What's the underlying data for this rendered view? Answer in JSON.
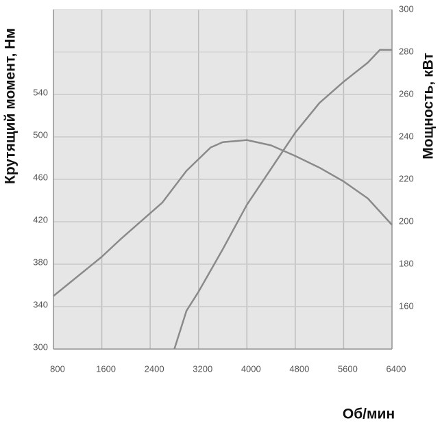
{
  "chart_data": {
    "type": "line",
    "ylabel": "Крутящий момент, Нм",
    "y2label": "Мощность, кВт",
    "xlabel": "Об/мин",
    "xlim": [
      800,
      6400
    ],
    "xticks": [
      800,
      1600,
      2400,
      3200,
      4000,
      4800,
      5600,
      6400
    ],
    "ylim": [
      300,
      620
    ],
    "yticks": [
      300,
      340,
      380,
      420,
      460,
      500,
      540
    ],
    "y2lim": [
      140,
      300
    ],
    "y2ticks": [
      160,
      180,
      200,
      220,
      240,
      260,
      280,
      300
    ],
    "grid": true,
    "series": [
      {
        "color": "#8a8a8a",
        "x": [
          800,
          1600,
          1900,
          2600,
          3000,
          3400,
          3600,
          4000,
          4400,
          4800,
          5200,
          5600,
          6000,
          6400
        ],
        "values": [
          350,
          387,
          403,
          438,
          468,
          490,
          495,
          497,
          492,
          482,
          471,
          458,
          442,
          417
        ]
      },
      {
        "color": "#8a8a8a",
        "axis": "y2",
        "x": [
          2800,
          3000,
          3200,
          3600,
          4000,
          4400,
          4800,
          5200,
          5600,
          6000,
          6200,
          6400
        ],
        "values": [
          140,
          158,
          167,
          187,
          208,
          225,
          242,
          256,
          266,
          275,
          281,
          281
        ]
      }
    ]
  }
}
